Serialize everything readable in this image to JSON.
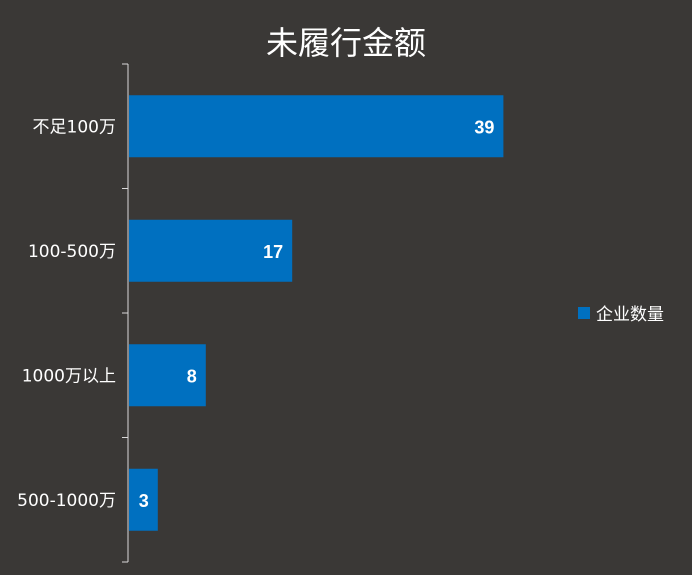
{
  "chart_data": {
    "type": "bar",
    "orientation": "horizontal",
    "title": "未履行金额",
    "categories": [
      "不足100万",
      "100-500万",
      "1000万以上",
      "500-1000万"
    ],
    "series": [
      {
        "name": "企业数量",
        "values": [
          39,
          17,
          8,
          3
        ],
        "color": "#0070c0"
      }
    ],
    "xlim": [
      0,
      42
    ],
    "grid": false,
    "legend": "right",
    "data_labels": true
  },
  "colors": {
    "background": "#3a3836",
    "axis": "#d9d9d9",
    "text": "#ffffff"
  }
}
